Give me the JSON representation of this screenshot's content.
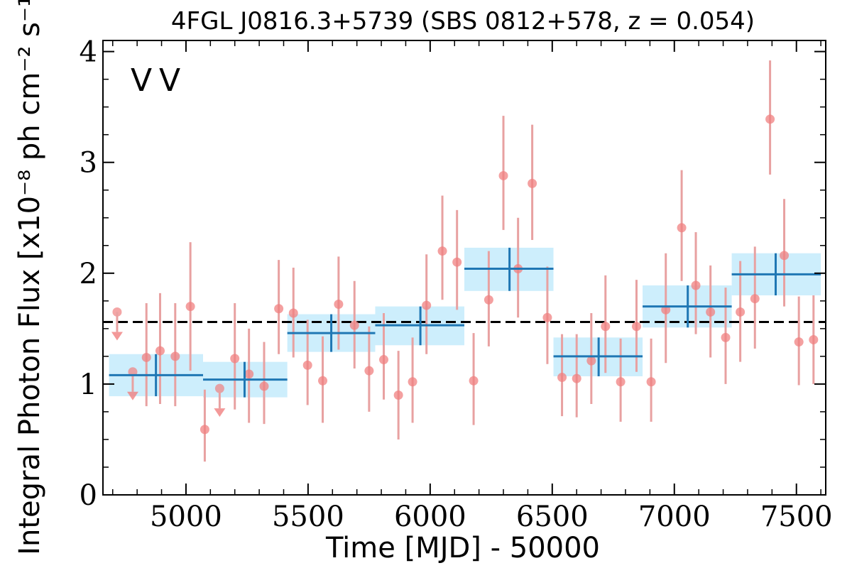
{
  "chart_data": {
    "type": "scatter",
    "title": "4FGL J0816.3+5739 (SBS 0812+578, z = 0.054)",
    "xlabel": "Time [MJD] - 50000",
    "ylabel": "Integral Photon Flux [x10⁻⁸ ph cm⁻² s⁻¹]",
    "xlim": [
      4660,
      7620
    ],
    "ylim": [
      0,
      4.1
    ],
    "x_ticks": [
      5000,
      5500,
      6000,
      6500,
      7000,
      7500
    ],
    "x_tick_labels": [
      "5000",
      "5500",
      "6000",
      "6500",
      "7000",
      "7500"
    ],
    "y_ticks": [
      0,
      1,
      2,
      3,
      4
    ],
    "y_tick_labels": [
      "0",
      "1",
      "2",
      "3",
      "4"
    ],
    "grid": false,
    "legend": {
      "placement": "top-left",
      "entries": [
        {
          "label": "V",
          "color": "#1f77b4"
        },
        {
          "label": "V",
          "color": "#d62728"
        }
      ]
    },
    "mean_flux": 1.56,
    "colors": {
      "blue": "#1f77b4",
      "red": "#f08080",
      "band": "#cdeefc",
      "errbar": "#e8a1a1",
      "mean_line": "#000000"
    },
    "series": [
      {
        "name": "V",
        "kind": "binned",
        "points": [
          {
            "x": 4877,
            "x_lo": 4685,
            "x_hi": 5070,
            "y": 1.08,
            "y_lo": 0.89,
            "y_hi": 1.27
          },
          {
            "x": 5240,
            "x_lo": 5070,
            "x_hi": 5415,
            "y": 1.04,
            "y_lo": 0.88,
            "y_hi": 1.2
          },
          {
            "x": 5595,
            "x_lo": 5415,
            "x_hi": 5775,
            "y": 1.46,
            "y_lo": 1.29,
            "y_hi": 1.63
          },
          {
            "x": 5960,
            "x_lo": 5775,
            "x_hi": 6140,
            "y": 1.53,
            "y_lo": 1.35,
            "y_hi": 1.7
          },
          {
            "x": 6325,
            "x_lo": 6140,
            "x_hi": 6505,
            "y": 2.04,
            "y_lo": 1.84,
            "y_hi": 2.23
          },
          {
            "x": 6690,
            "x_lo": 6505,
            "x_hi": 6870,
            "y": 1.25,
            "y_lo": 1.07,
            "y_hi": 1.42
          },
          {
            "x": 7055,
            "x_lo": 6870,
            "x_hi": 7235,
            "y": 1.7,
            "y_lo": 1.51,
            "y_hi": 1.89
          },
          {
            "x": 7415,
            "x_lo": 7235,
            "x_hi": 7600,
            "y": 1.99,
            "y_lo": 1.8,
            "y_hi": 2.18
          }
        ]
      },
      {
        "name": "V",
        "kind": "fine",
        "points": [
          {
            "x": 4718,
            "y": 1.65,
            "upper_limit": true
          },
          {
            "x": 4782,
            "y": 1.11,
            "upper_limit": true
          },
          {
            "x": 4838,
            "y": 1.24,
            "y_lo": 0.8,
            "y_hi": 1.73
          },
          {
            "x": 4894,
            "y": 1.3,
            "y_lo": 0.82,
            "y_hi": 1.82
          },
          {
            "x": 4956,
            "y": 1.25,
            "y_lo": 0.8,
            "y_hi": 1.73
          },
          {
            "x": 5018,
            "y": 1.7,
            "y_lo": 1.12,
            "y_hi": 2.28
          },
          {
            "x": 5077,
            "y": 0.59,
            "y_lo": 0.3,
            "y_hi": 0.95
          },
          {
            "x": 5138,
            "y": 0.96,
            "upper_limit": true
          },
          {
            "x": 5200,
            "y": 1.23,
            "y_lo": 0.77,
            "y_hi": 1.73
          },
          {
            "x": 5258,
            "y": 1.09,
            "y_lo": 0.65,
            "y_hi": 1.5
          },
          {
            "x": 5320,
            "y": 0.98,
            "y_lo": 0.64,
            "y_hi": 1.38
          },
          {
            "x": 5380,
            "y": 1.68,
            "y_lo": 1.27,
            "y_hi": 2.12
          },
          {
            "x": 5440,
            "y": 1.64,
            "y_lo": 1.24,
            "y_hi": 2.05
          },
          {
            "x": 5498,
            "y": 1.17,
            "y_lo": 0.81,
            "y_hi": 1.58
          },
          {
            "x": 5560,
            "y": 1.03,
            "y_lo": 0.65,
            "y_hi": 1.43
          },
          {
            "x": 5625,
            "y": 1.72,
            "y_lo": 1.31,
            "y_hi": 2.15
          },
          {
            "x": 5690,
            "y": 1.53,
            "y_lo": 1.14,
            "y_hi": 1.93
          },
          {
            "x": 5750,
            "y": 1.12,
            "y_lo": 0.75,
            "y_hi": 1.52
          },
          {
            "x": 5810,
            "y": 1.22,
            "y_lo": 0.86,
            "y_hi": 1.64
          },
          {
            "x": 5870,
            "y": 0.9,
            "y_lo": 0.5,
            "y_hi": 1.3
          },
          {
            "x": 5928,
            "y": 1.02,
            "y_lo": 0.65,
            "y_hi": 1.42
          },
          {
            "x": 5985,
            "y": 1.71,
            "y_lo": 1.27,
            "y_hi": 2.17
          },
          {
            "x": 6050,
            "y": 2.2,
            "y_lo": 1.76,
            "y_hi": 2.7
          },
          {
            "x": 6110,
            "y": 2.1,
            "y_lo": 1.67,
            "y_hi": 2.57
          },
          {
            "x": 6178,
            "y": 1.03,
            "y_lo": 0.63,
            "y_hi": 1.46
          },
          {
            "x": 6240,
            "y": 1.76,
            "y_lo": 1.34,
            "y_hi": 2.2
          },
          {
            "x": 6300,
            "y": 2.88,
            "y_lo": 2.39,
            "y_hi": 3.42
          },
          {
            "x": 6360,
            "y": 2.04,
            "y_lo": 1.6,
            "y_hi": 2.5
          },
          {
            "x": 6418,
            "y": 2.81,
            "y_lo": 2.3,
            "y_hi": 3.34
          },
          {
            "x": 6480,
            "y": 1.6,
            "y_lo": 1.18,
            "y_hi": 2.06
          },
          {
            "x": 6540,
            "y": 1.06,
            "y_lo": 0.71,
            "y_hi": 1.45
          },
          {
            "x": 6600,
            "y": 1.05,
            "y_lo": 0.7,
            "y_hi": 1.45
          },
          {
            "x": 6660,
            "y": 1.21,
            "y_lo": 0.82,
            "y_hi": 1.64
          },
          {
            "x": 6718,
            "y": 1.52,
            "y_lo": 1.1,
            "y_hi": 1.98
          },
          {
            "x": 6780,
            "y": 1.02,
            "y_lo": 0.66,
            "y_hi": 1.41
          },
          {
            "x": 6845,
            "y": 1.52,
            "y_lo": 1.11,
            "y_hi": 1.94
          },
          {
            "x": 6905,
            "y": 1.02,
            "y_lo": 0.66,
            "y_hi": 1.41
          },
          {
            "x": 6965,
            "y": 1.67,
            "y_lo": 1.19,
            "y_hi": 2.18
          },
          {
            "x": 7030,
            "y": 2.41,
            "y_lo": 1.93,
            "y_hi": 2.93
          },
          {
            "x": 7088,
            "y": 1.89,
            "y_lo": 1.45,
            "y_hi": 2.37
          },
          {
            "x": 7148,
            "y": 1.65,
            "y_lo": 1.24,
            "y_hi": 2.07
          },
          {
            "x": 7210,
            "y": 1.42,
            "y_lo": 1.0,
            "y_hi": 1.87
          },
          {
            "x": 7270,
            "y": 1.65,
            "y_lo": 1.2,
            "y_hi": 2.11
          },
          {
            "x": 7330,
            "y": 1.77,
            "y_lo": 1.32,
            "y_hi": 2.24
          },
          {
            "x": 7392,
            "y": 3.39,
            "y_lo": 2.89,
            "y_hi": 3.92
          },
          {
            "x": 7450,
            "y": 2.16,
            "y_lo": 1.7,
            "y_hi": 2.67
          },
          {
            "x": 7510,
            "y": 1.38,
            "y_lo": 0.99,
            "y_hi": 1.79
          },
          {
            "x": 7570,
            "y": 1.4,
            "y_lo": 1.0,
            "y_hi": 1.8
          }
        ]
      }
    ]
  }
}
